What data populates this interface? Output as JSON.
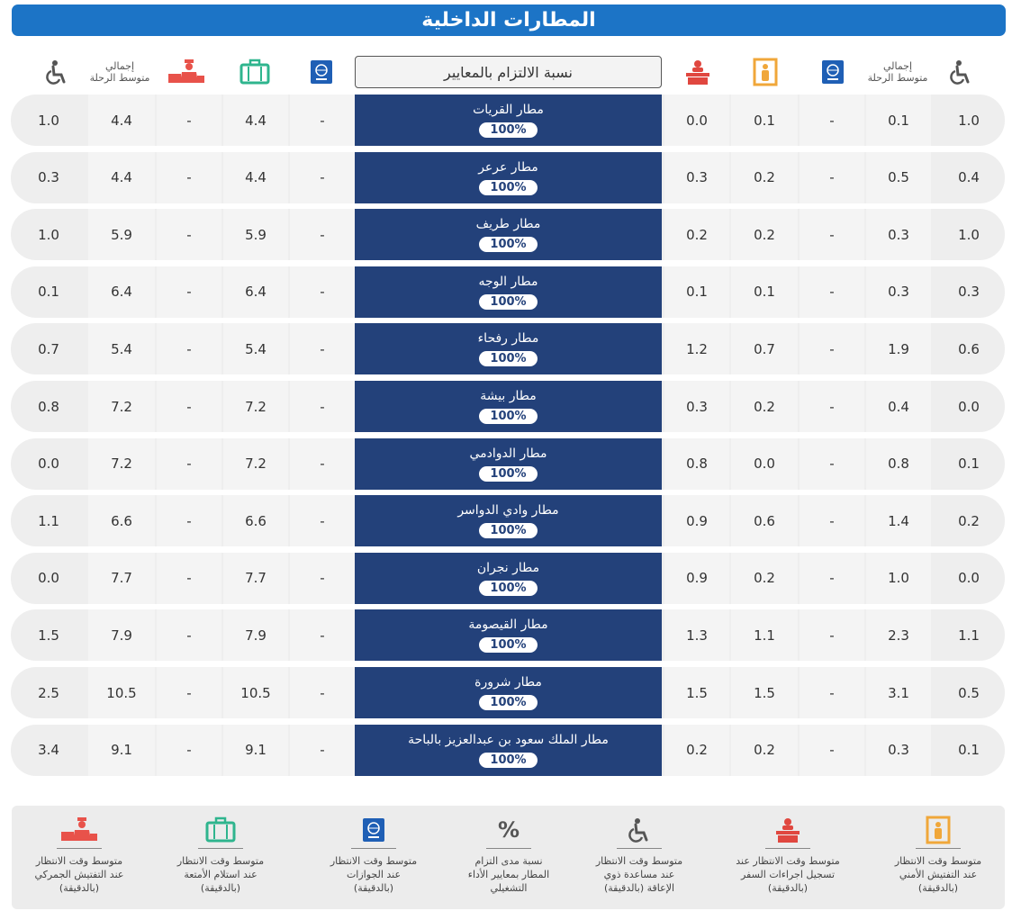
{
  "title": "المطارات الداخلية",
  "header": {
    "criteria": "نسبة الالتزام بالمعايير",
    "total_avg_right": "إجمالي متوسط الرحلة",
    "total_avg_left": "إجمالي متوسط الرحلة"
  },
  "icons": {
    "wheelchair": "wheelchair-icon",
    "passport": "passport-icon",
    "security_gate": "security-gate-icon",
    "checkin_counter": "checkin-counter-icon",
    "baggage": "baggage-icon",
    "customs": "customs-icon"
  },
  "colors": {
    "title_bg": "#1c74c6",
    "row_center": "#23417a",
    "security": "#f0a73a",
    "checkin": "#e0473f",
    "baggage": "#2fb58e",
    "customs": "#e8524a",
    "passport": "#1f5fb5"
  },
  "rows": [
    {
      "name": "مطار القريات",
      "pct": "100%",
      "c1": "1.0",
      "c2": "0.1",
      "c3": "-",
      "c4": "0.1",
      "c5": "0.0",
      "c6": "-",
      "c7": "4.4",
      "c8": "-",
      "c9": "4.4",
      "c10": "1.0"
    },
    {
      "name": "مطار عرعر",
      "pct": "100%",
      "c1": "0.4",
      "c2": "0.5",
      "c3": "-",
      "c4": "0.2",
      "c5": "0.3",
      "c6": "-",
      "c7": "4.4",
      "c8": "-",
      "c9": "4.4",
      "c10": "0.3"
    },
    {
      "name": "مطار طريف",
      "pct": "100%",
      "c1": "1.0",
      "c2": "0.3",
      "c3": "-",
      "c4": "0.2",
      "c5": "0.2",
      "c6": "-",
      "c7": "5.9",
      "c8": "-",
      "c9": "5.9",
      "c10": "1.0"
    },
    {
      "name": "مطار الوجه",
      "pct": "100%",
      "c1": "0.3",
      "c2": "0.3",
      "c3": "-",
      "c4": "0.1",
      "c5": "0.1",
      "c6": "-",
      "c7": "6.4",
      "c8": "-",
      "c9": "6.4",
      "c10": "0.1"
    },
    {
      "name": "مطار رفحاء",
      "pct": "100%",
      "c1": "0.6",
      "c2": "1.9",
      "c3": "-",
      "c4": "0.7",
      "c5": "1.2",
      "c6": "-",
      "c7": "5.4",
      "c8": "-",
      "c9": "5.4",
      "c10": "0.7"
    },
    {
      "name": "مطار بيشة",
      "pct": "100%",
      "c1": "0.0",
      "c2": "0.4",
      "c3": "-",
      "c4": "0.2",
      "c5": "0.3",
      "c6": "-",
      "c7": "7.2",
      "c8": "-",
      "c9": "7.2",
      "c10": "0.8"
    },
    {
      "name": "مطار الدوادمي",
      "pct": "100%",
      "c1": "0.1",
      "c2": "0.8",
      "c3": "-",
      "c4": "0.0",
      "c5": "0.8",
      "c6": "-",
      "c7": "7.2",
      "c8": "-",
      "c9": "7.2",
      "c10": "0.0"
    },
    {
      "name": "مطار وادي الدواسر",
      "pct": "100%",
      "c1": "0.2",
      "c2": "1.4",
      "c3": "-",
      "c4": "0.6",
      "c5": "0.9",
      "c6": "-",
      "c7": "6.6",
      "c8": "-",
      "c9": "6.6",
      "c10": "1.1"
    },
    {
      "name": "مطار نجران",
      "pct": "100%",
      "c1": "0.0",
      "c2": "1.0",
      "c3": "-",
      "c4": "0.2",
      "c5": "0.9",
      "c6": "-",
      "c7": "7.7",
      "c8": "-",
      "c9": "7.7",
      "c10": "0.0"
    },
    {
      "name": "مطار القيصومة",
      "pct": "100%",
      "c1": "1.1",
      "c2": "2.3",
      "c3": "-",
      "c4": "1.1",
      "c5": "1.3",
      "c6": "-",
      "c7": "7.9",
      "c8": "-",
      "c9": "7.9",
      "c10": "1.5"
    },
    {
      "name": "مطار شرورة",
      "pct": "100%",
      "c1": "0.5",
      "c2": "3.1",
      "c3": "-",
      "c4": "1.5",
      "c5": "1.5",
      "c6": "-",
      "c7": "10.5",
      "c8": "-",
      "c9": "10.5",
      "c10": "2.5"
    },
    {
      "name": "مطار الملك سعود بن عبدالعزيز بالباحة",
      "pct": "100%",
      "c1": "0.1",
      "c2": "0.3",
      "c3": "-",
      "c4": "0.2",
      "c5": "0.2",
      "c6": "-",
      "c7": "9.1",
      "c8": "-",
      "c9": "9.1",
      "c10": "3.4"
    }
  ],
  "legend": [
    {
      "key": "security",
      "line1": "متوسط وقت الانتظار",
      "line2": "عند التفتيش الأمني",
      "line3": "(بالدقيقة)"
    },
    {
      "key": "checkin",
      "line1": "متوسط وقت الانتظار عند",
      "line2": "تسجيل اجراءات السفر",
      "line3": "(بالدقيقة)"
    },
    {
      "key": "wheelchair",
      "line1": "متوسط وقت الانتظار",
      "line2": "عند مساعدة ذوي",
      "line3": "الإعاقة (بالدقيقة)"
    },
    {
      "key": "percent",
      "symbol": "%",
      "line1": "نسبة مدى التزام",
      "line2": "المطار بمعايير الأداء",
      "line3": "التشغيلي"
    },
    {
      "key": "passport",
      "line1": "متوسط وقت الانتظار",
      "line2": "عند الجوازات",
      "line3": "(بالدقيقة)"
    },
    {
      "key": "baggage",
      "line1": "متوسط وقت الانتظار",
      "line2": "عند استلام الأمتعة",
      "line3": "(بالدقيقة)"
    },
    {
      "key": "customs",
      "line1": "متوسط وقت الانتظار",
      "line2": "عند التفتيش الجمركي",
      "line3": "(بالدقيقة)"
    }
  ]
}
